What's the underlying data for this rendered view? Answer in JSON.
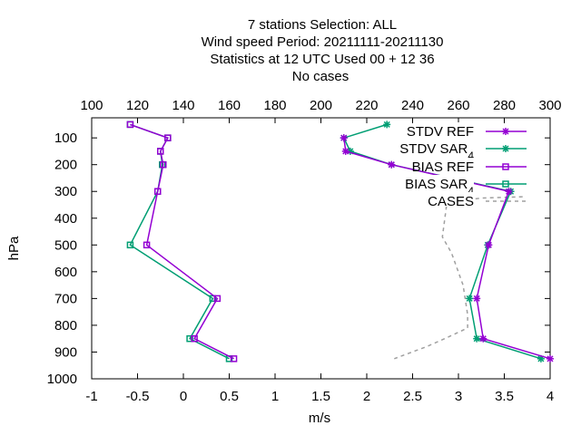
{
  "title_lines": [
    "7 stations Selection: ALL",
    "Wind speed  Period: 20211111-20211130",
    "Statistics at 12 UTC  Used  00 + 12 36",
    "No cases"
  ],
  "colors": {
    "ref": "#9400d3",
    "sar": "#009e73",
    "cases": "#a0a0a0"
  },
  "chart_data": {
    "type": "line",
    "xlabel": "m/s",
    "ylabel": "hPa",
    "x_range": [
      -1,
      4
    ],
    "x_ticks": [
      "-1",
      "-0.5",
      "0",
      "0.5",
      "1",
      "1.5",
      "2",
      "2.5",
      "3",
      "3.5",
      "4"
    ],
    "x_tick_values": [
      -1,
      -0.5,
      0,
      0.5,
      1,
      1.5,
      2,
      2.5,
      3,
      3.5,
      4
    ],
    "x2_range": [
      100,
      300
    ],
    "x2_ticks": [
      "100",
      "120",
      "140",
      "160",
      "180",
      "200",
      "220",
      "240",
      "260",
      "280",
      "300"
    ],
    "x2_tick_values": [
      100,
      120,
      140,
      160,
      180,
      200,
      220,
      240,
      260,
      280,
      300
    ],
    "y_range": [
      1000,
      25
    ],
    "y_ticks": [
      "100",
      "200",
      "300",
      "400",
      "500",
      "600",
      "700",
      "800",
      "900",
      "1000"
    ],
    "y_tick_values": [
      100,
      200,
      300,
      400,
      500,
      600,
      700,
      800,
      900,
      1000
    ],
    "legend_position": "top-right",
    "series": [
      {
        "name": "STDV REF",
        "marker": "star",
        "color_key": "ref",
        "axis": "x",
        "points": [
          [
            1.75,
            100
          ],
          [
            1.77,
            150
          ],
          [
            2.27,
            200
          ],
          [
            3.55,
            300
          ],
          [
            3.33,
            500
          ],
          [
            3.2,
            700
          ],
          [
            3.27,
            850
          ],
          [
            4.0,
            925
          ]
        ]
      },
      {
        "name": "STDV SAR",
        "subscript": "4",
        "marker": "star",
        "color_key": "sar",
        "axis": "x",
        "points": [
          [
            2.22,
            50
          ],
          [
            1.75,
            100
          ],
          [
            1.82,
            150
          ],
          [
            2.27,
            200
          ],
          [
            3.57,
            300
          ],
          [
            3.32,
            500
          ],
          [
            3.12,
            700
          ],
          [
            3.2,
            850
          ],
          [
            3.9,
            925
          ]
        ]
      },
      {
        "name": "BIAS REF",
        "marker": "square",
        "color_key": "ref",
        "axis": "x",
        "points": [
          [
            -0.58,
            50
          ],
          [
            -0.17,
            100
          ],
          [
            -0.25,
            150
          ],
          [
            -0.22,
            200
          ],
          [
            -0.28,
            300
          ],
          [
            -0.4,
            500
          ],
          [
            0.37,
            700
          ],
          [
            0.12,
            850
          ],
          [
            0.55,
            925
          ]
        ]
      },
      {
        "name": "BIAS SAR",
        "subscript": "4",
        "marker": "square",
        "color_key": "sar",
        "axis": "x",
        "points": [
          [
            -0.58,
            50
          ],
          [
            -0.17,
            100
          ],
          [
            -0.25,
            150
          ],
          [
            -0.23,
            200
          ],
          [
            -0.28,
            300
          ],
          [
            -0.58,
            500
          ],
          [
            0.32,
            700
          ],
          [
            0.07,
            850
          ],
          [
            0.5,
            925
          ]
        ]
      },
      {
        "name": "CASES",
        "marker": "none",
        "color_key": "cases",
        "dashed": true,
        "axis": "x2",
        "points": [
          [
            288,
            320
          ],
          [
            270,
            325
          ],
          [
            255,
            340
          ],
          [
            253,
            470
          ],
          [
            257,
            530
          ],
          [
            262,
            650
          ],
          [
            264,
            760
          ],
          [
            264,
            810
          ],
          [
            254,
            850
          ],
          [
            246,
            880
          ],
          [
            232,
            925
          ]
        ]
      }
    ]
  }
}
